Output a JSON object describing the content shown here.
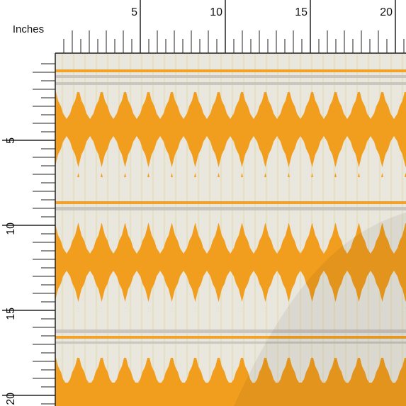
{
  "unit_label": "Inches",
  "top_ruler": {
    "labels": [
      "5",
      "10",
      "15",
      "20"
    ]
  },
  "left_ruler": {
    "labels": [
      "5",
      "10",
      "15",
      "20"
    ]
  }
}
